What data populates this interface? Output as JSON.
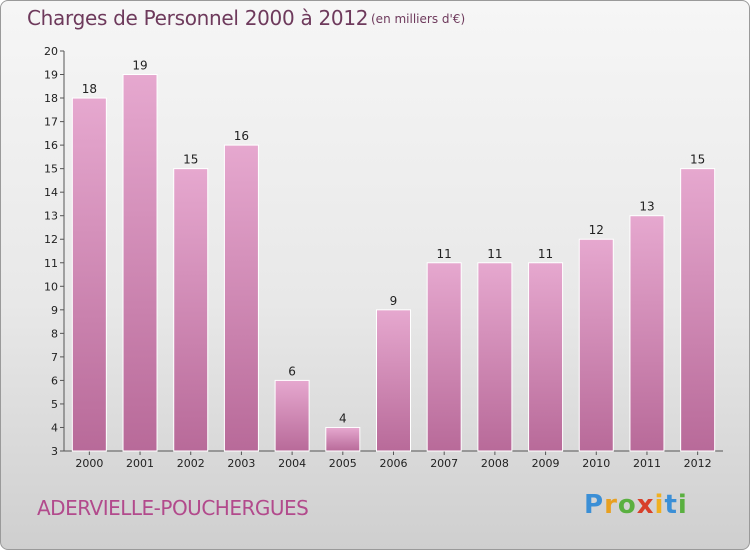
{
  "header": {
    "title": "Charges de Personnel 2000 à 2012",
    "subtitle": "(en milliers d'€)"
  },
  "footer": {
    "commune": "ADERVIELLE-POUCHERGUES",
    "logo": [
      "P",
      "r",
      "o",
      "x",
      "i",
      "t",
      "i"
    ],
    "logo_colors": [
      "#3b8fd6",
      "#e8a020",
      "#5ab040",
      "#d8402a",
      "#f0b020",
      "#3b8fd6",
      "#5ab040"
    ]
  },
  "colors": {
    "bar_light": "#e6a8cf",
    "bar_dark": "#b86a99",
    "axis": "#555555",
    "grid": "#cccccc"
  },
  "chart_data": {
    "type": "bar",
    "title": "Charges de Personnel 2000 à 2012",
    "subtitle": "(en milliers d'€)",
    "categories": [
      "2000",
      "2001",
      "2002",
      "2003",
      "2004",
      "2005",
      "2006",
      "2007",
      "2008",
      "2009",
      "2010",
      "2011",
      "2012"
    ],
    "values": [
      18,
      19,
      15,
      16,
      6,
      4,
      9,
      11,
      11,
      11,
      12,
      13,
      15
    ],
    "ylim": [
      3,
      20
    ],
    "yticks": [
      3,
      4,
      5,
      6,
      7,
      8,
      9,
      10,
      11,
      12,
      13,
      14,
      15,
      16,
      17,
      18,
      19,
      20
    ],
    "grid": false,
    "data_labels": true
  }
}
